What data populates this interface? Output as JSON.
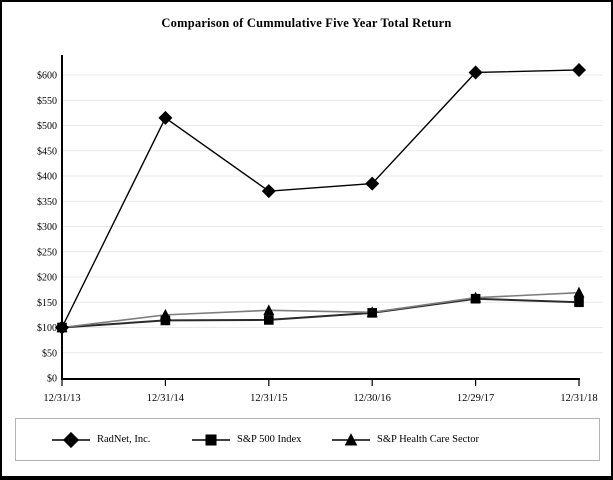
{
  "title": "Comparison of Cummulative Five Year Total Return",
  "chart_data": {
    "type": "line",
    "title": "Comparison of Cummulative Five Year Total Return",
    "categories": [
      "12/31/13",
      "12/31/14",
      "12/31/15",
      "12/30/16",
      "12/29/17",
      "12/31/18"
    ],
    "series": [
      {
        "name": "RadNet, Inc.",
        "marker": "diamond",
        "color": "#000000",
        "line_width": 1.4,
        "values": [
          100,
          515,
          370,
          385,
          605,
          610
        ]
      },
      {
        "name": "S&P 500 Index",
        "marker": "square",
        "color": "#2b2b2b",
        "line_width": 2,
        "values": [
          100,
          114,
          115,
          129,
          157,
          150
        ]
      },
      {
        "name": "S&P Health Care Sector",
        "marker": "triangle",
        "color": "#7d7d7d",
        "line_width": 1.6,
        "values": [
          100,
          125,
          134,
          130,
          159,
          169
        ]
      }
    ],
    "y_ticks": [
      "$0",
      "$50",
      "$100",
      "$150",
      "$200",
      "$250",
      "$300",
      "$350",
      "$400",
      "$450",
      "$500",
      "$550",
      "$600"
    ],
    "ylim": [
      0,
      600
    ],
    "y_tick_step": 50,
    "xlabel": "",
    "ylabel": "",
    "grid": "horizontal",
    "gridline_color": "#e9e9e9",
    "axis_color": "#000000",
    "legend_position": "bottom"
  }
}
